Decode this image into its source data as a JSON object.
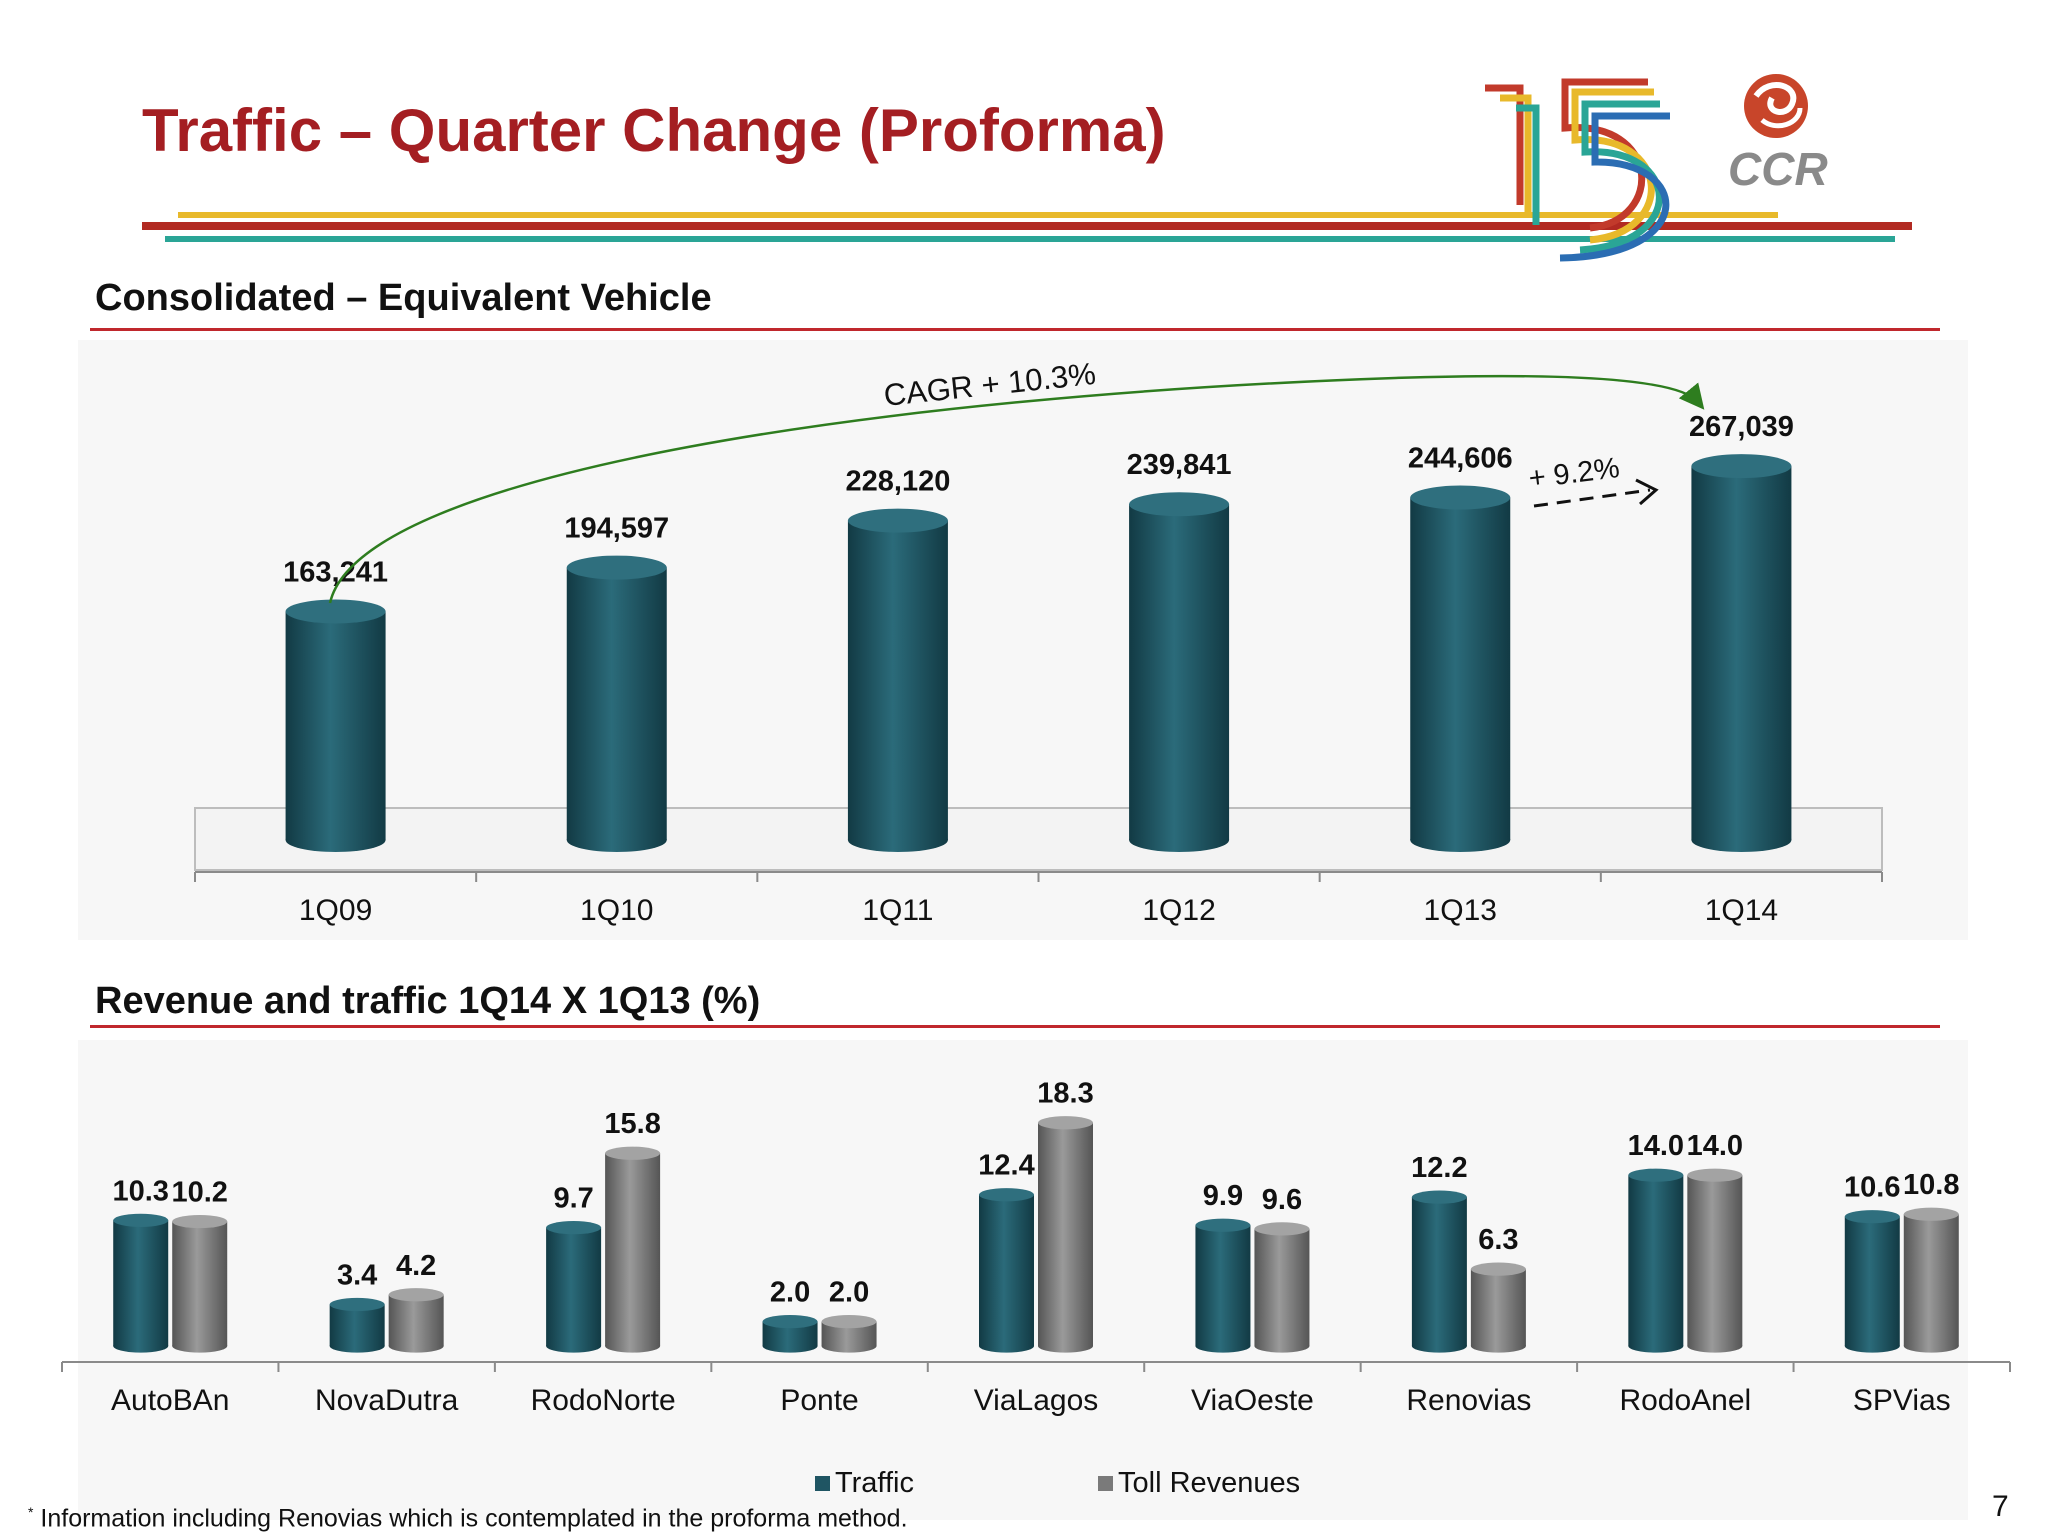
{
  "slide": {
    "title": "Traffic – Quarter Change (Proforma)",
    "page_number": "7",
    "footnote_marker": "*",
    "footnote": " Information including Renovias which is contemplated in the proforma method.",
    "logo_text": "CCR",
    "accent_color": "#a41e22"
  },
  "sections": {
    "top_title": "Consolidated – Equivalent Vehicle",
    "bottom_title": "Revenue and traffic 1Q14 X 1Q13 (%)"
  },
  "annotations": {
    "cagr": "CAGR + 10.3%",
    "yoy": "+ 9.2%"
  },
  "chart_data": [
    {
      "type": "bar",
      "categories": [
        "1Q09",
        "1Q10",
        "1Q11",
        "1Q12",
        "1Q13",
        "1Q14"
      ],
      "values": [
        163241,
        194597,
        228120,
        239841,
        244606,
        267039
      ],
      "value_labels": [
        "163,241",
        "194,597",
        "228,120",
        "239,841",
        "244,606",
        "267,039"
      ],
      "title": "Consolidated – Equivalent Vehicle",
      "ylim": [
        0,
        280000
      ],
      "grid": false,
      "colors": {
        "bar": "#1f5563"
      },
      "annotations": [
        "CAGR + 10.3%",
        "+ 9.2%"
      ]
    },
    {
      "type": "bar",
      "categories": [
        "AutoBAn",
        "NovaDutra",
        "RodoNorte",
        "Ponte",
        "ViaLagos",
        "ViaOeste",
        "Renovias",
        "RodoAnel",
        "SPVias"
      ],
      "series": [
        {
          "name": "Traffic",
          "values": [
            10.3,
            3.4,
            9.7,
            2.0,
            12.4,
            9.9,
            12.2,
            14.0,
            10.6
          ],
          "labels": [
            "10.3",
            "3.4",
            "9.7",
            "2.0",
            "12.4",
            "9.9",
            "12.2",
            "14.0",
            "10.6"
          ],
          "color": "#1f5563"
        },
        {
          "name": "Toll Revenues",
          "values": [
            10.2,
            4.2,
            15.8,
            2.0,
            18.3,
            9.6,
            6.3,
            14.0,
            10.8
          ],
          "labels": [
            "10.2",
            "4.2",
            "15.8",
            "2.0",
            "18.3",
            "9.6",
            "6.3",
            "14.0",
            "10.8"
          ],
          "color": "#7a7a7a"
        }
      ],
      "title": "Revenue and traffic 1Q14 X 1Q13 (%)",
      "ylim": [
        0,
        20
      ],
      "legend": "bottom",
      "grid": false
    }
  ]
}
